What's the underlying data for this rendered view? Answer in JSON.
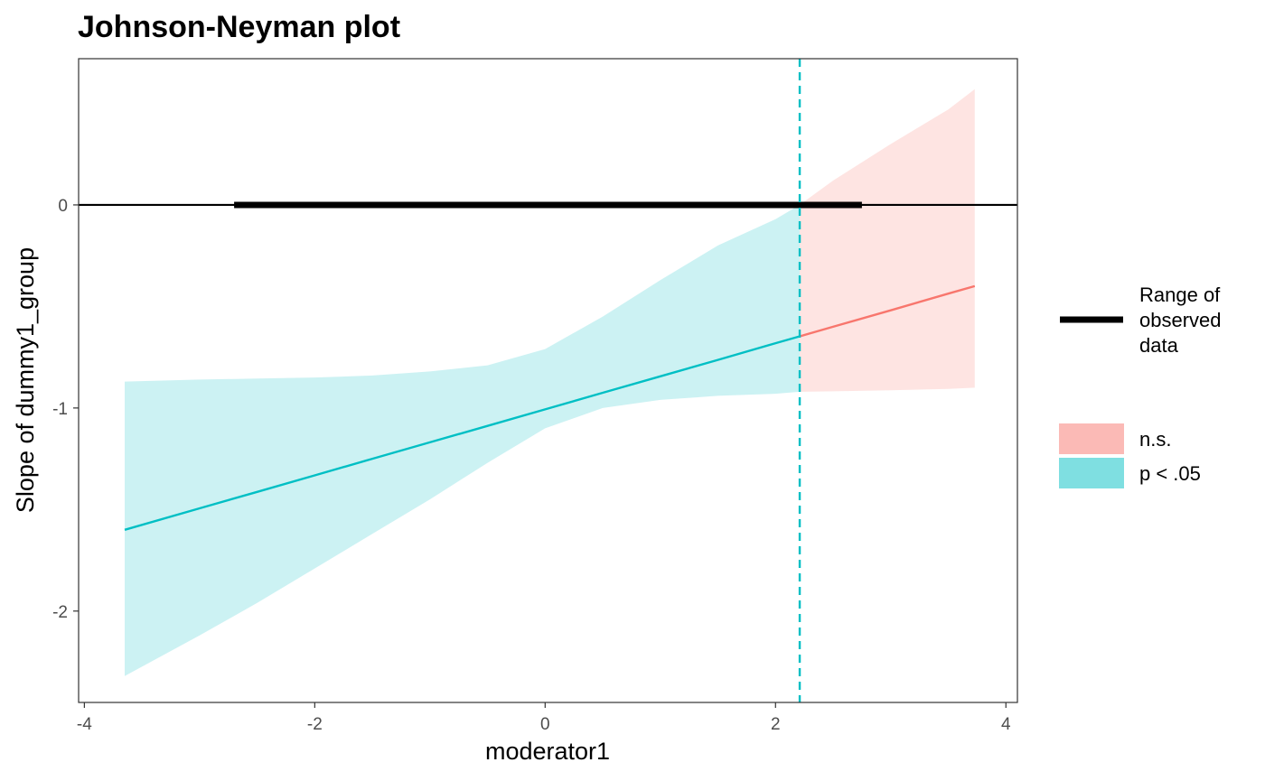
{
  "chart_data": {
    "type": "line",
    "title": "Johnson-Neyman plot",
    "xlabel": "moderator1",
    "ylabel": "Slope of dummy1_group",
    "xlim": [
      -4.05,
      4.1
    ],
    "ylim": [
      -2.45,
      0.72
    ],
    "xticks": [
      -4,
      -2,
      0,
      2,
      4
    ],
    "yticks": [
      -2,
      -1,
      0
    ],
    "grid": false,
    "legend_position": "right",
    "reference_line_y": 0,
    "jn_threshold_x": 2.21,
    "observed_range": {
      "label": "Range of observed data",
      "x": [
        -2.7,
        2.75
      ],
      "color": "#000000"
    },
    "series": [
      {
        "name": "p < .05",
        "color": "#00BFC4",
        "x": [
          -3.65,
          -3.0,
          -2.5,
          -2.0,
          -1.5,
          -1.0,
          -0.5,
          0.0,
          0.5,
          1.0,
          1.5,
          2.0,
          2.21
        ],
        "y": [
          -1.6,
          -1.494,
          -1.413,
          -1.332,
          -1.25,
          -1.169,
          -1.088,
          -1.007,
          -0.925,
          -0.844,
          -0.763,
          -0.681,
          -0.647
        ],
        "lower": [
          -2.32,
          -2.12,
          -1.96,
          -1.79,
          -1.62,
          -1.45,
          -1.27,
          -1.1,
          -1.0,
          -0.96,
          -0.94,
          -0.93,
          -0.92
        ],
        "upper": [
          -0.87,
          -0.86,
          -0.855,
          -0.85,
          -0.84,
          -0.82,
          -0.79,
          -0.71,
          -0.55,
          -0.37,
          -0.2,
          -0.07,
          0.0
        ]
      },
      {
        "name": "n.s.",
        "color": "#F8766D",
        "x": [
          2.21,
          2.5,
          3.0,
          3.5,
          3.73
        ],
        "y": [
          -0.647,
          -0.6,
          -0.519,
          -0.437,
          -0.4
        ],
        "lower": [
          -0.92,
          -0.918,
          -0.913,
          -0.906,
          -0.9
        ],
        "upper": [
          0.0,
          0.12,
          0.3,
          0.47,
          0.57
        ]
      }
    ],
    "legend": {
      "range_label": [
        "Range of",
        "observed",
        "data"
      ],
      "fill_entries": [
        {
          "label": "n.s.",
          "color": "#F8766D"
        },
        {
          "label": "p < .05",
          "color": "#00BFC4"
        }
      ]
    }
  }
}
